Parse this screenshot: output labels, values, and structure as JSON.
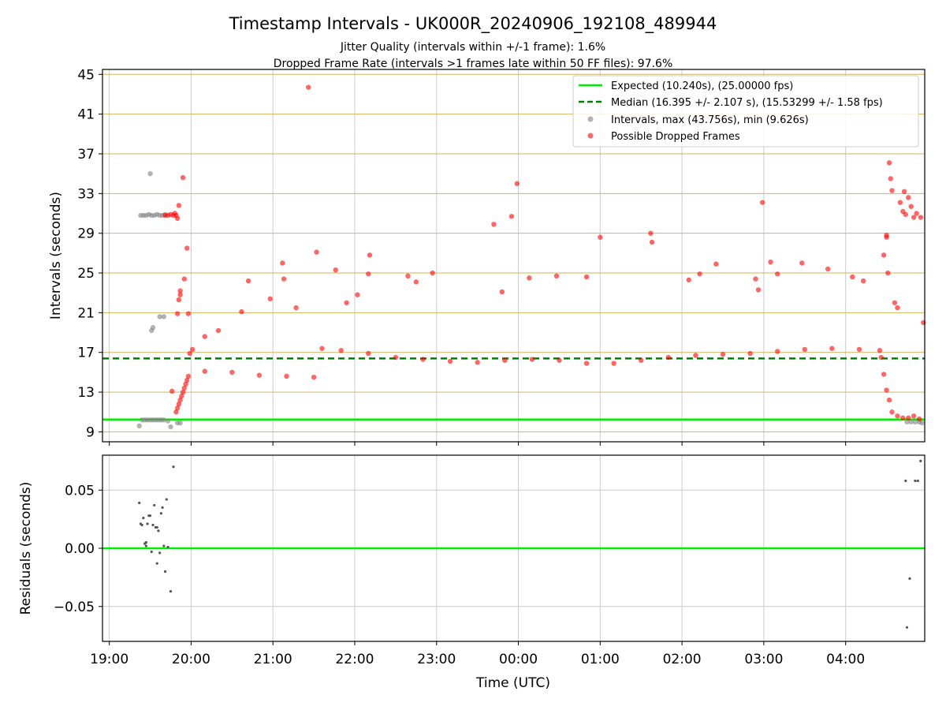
{
  "header": {
    "title": "Timestamp Intervals - UK000R_20240906_192108_489944",
    "subtitle_1": "Jitter Quality (intervals within +/-1 frame): 1.6%",
    "subtitle_2": "Dropped Frame Rate (intervals >1 frames late within 50 FF files): 97.6%"
  },
  "colors": {
    "expected": "#00ee00",
    "median": "#008000",
    "intervals": "#808080",
    "dropped": "#ff0000",
    "hgrid": "#d2b45a",
    "vgrid": "#cccccc"
  },
  "chart_data": [
    {
      "type": "scatter",
      "ylabel": "Intervals (seconds)",
      "xlim": [
        "18:55",
        "04:58"
      ],
      "ylim": [
        8,
        45.5
      ],
      "yticks": [
        9,
        13,
        17,
        21,
        25,
        29,
        33,
        37,
        41,
        45
      ],
      "ytick_labels": [
        "9",
        "13",
        "17",
        "21",
        "25",
        "29",
        "33",
        "37",
        "41",
        "45"
      ],
      "grid": "horizontal lines at y ticks, vertical lines at x ticks",
      "legend_position": "top-right",
      "legend": [
        "Expected (10.240s), (25.00000 fps)",
        "Median (16.395 +/- 2.107 s), (15.53299 +/- 1.58 fps)",
        "Intervals, max (43.756s), min (9.626s)",
        "Possible Dropped Frames"
      ],
      "reference_lines": {
        "expected": 10.24,
        "median": 16.395
      },
      "series": [
        {
          "name": "Intervals, max (43.756s), min (9.626s)",
          "points": [
            [
              "19:23",
              30.8
            ],
            [
              "19:25",
              30.8
            ],
            [
              "19:27",
              30.8
            ],
            [
              "19:29",
              30.9
            ],
            [
              "19:31",
              30.8
            ],
            [
              "19:33",
              30.8
            ],
            [
              "19:35",
              30.9
            ],
            [
              "19:37",
              30.8
            ],
            [
              "19:39",
              30.8
            ],
            [
              "19:41",
              30.9
            ],
            [
              "19:30",
              35.0
            ],
            [
              "19:31",
              19.2
            ],
            [
              "19:32",
              19.5
            ],
            [
              "19:37",
              20.6
            ],
            [
              "19:40",
              20.6
            ],
            [
              "19:22",
              9.6
            ],
            [
              "19:24",
              10.2
            ],
            [
              "19:26",
              10.2
            ],
            [
              "19:28",
              10.2
            ],
            [
              "19:30",
              10.2
            ],
            [
              "19:32",
              10.2
            ],
            [
              "19:34",
              10.2
            ],
            [
              "19:36",
              10.2
            ],
            [
              "19:38",
              10.2
            ],
            [
              "19:40",
              10.2
            ],
            [
              "19:43",
              10.1
            ],
            [
              "19:45",
              9.5
            ],
            [
              "19:50",
              9.9
            ],
            [
              "19:52",
              9.9
            ],
            [
              "04:45",
              10.0
            ],
            [
              "04:48",
              10.0
            ],
            [
              "04:51",
              10.0
            ],
            [
              "04:54",
              10.0
            ],
            [
              "04:56",
              9.9
            ]
          ]
        },
        {
          "name": "Possible Dropped Frames",
          "points": [
            [
              "19:41",
              30.8
            ],
            [
              "19:43",
              30.8
            ],
            [
              "19:45",
              30.9
            ],
            [
              "19:47",
              30.8
            ],
            [
              "19:48",
              31.0
            ],
            [
              "19:49",
              30.8
            ],
            [
              "19:50",
              30.5
            ],
            [
              "19:51",
              31.8
            ],
            [
              "19:54",
              34.6
            ],
            [
              "19:57",
              27.5
            ],
            [
              "19:52",
              23.2
            ],
            [
              "19:52",
              22.8
            ],
            [
              "19:51",
              22.3
            ],
            [
              "19:50",
              20.9
            ],
            [
              "19:55",
              24.4
            ],
            [
              "19:49",
              11.0
            ],
            [
              "19:50",
              11.4
            ],
            [
              "19:51",
              11.8
            ],
            [
              "19:52",
              12.2
            ],
            [
              "19:53",
              12.6
            ],
            [
              "19:54",
              13.0
            ],
            [
              "19:55",
              13.4
            ],
            [
              "19:56",
              13.8
            ],
            [
              "19:57",
              14.2
            ],
            [
              "19:58",
              14.6
            ],
            [
              "19:46",
              13.1
            ],
            [
              "19:58",
              20.9
            ],
            [
              "19:59",
              16.9
            ],
            [
              "20:01",
              17.3
            ],
            [
              "20:10",
              18.6
            ],
            [
              "20:20",
              19.2
            ],
            [
              "20:37",
              21.1
            ],
            [
              "20:42",
              24.2
            ],
            [
              "20:58",
              22.4
            ],
            [
              "21:07",
              26.0
            ],
            [
              "21:08",
              24.4
            ],
            [
              "21:17",
              21.5
            ],
            [
              "21:26",
              43.7
            ],
            [
              "21:32",
              27.1
            ],
            [
              "21:46",
              25.3
            ],
            [
              "21:54",
              22.0
            ],
            [
              "22:02",
              22.8
            ],
            [
              "22:10",
              24.9
            ],
            [
              "22:11",
              26.8
            ],
            [
              "22:39",
              24.7
            ],
            [
              "22:45",
              24.1
            ],
            [
              "22:57",
              25.0
            ],
            [
              "23:42",
              29.9
            ],
            [
              "23:48",
              23.1
            ],
            [
              "23:55",
              30.7
            ],
            [
              "23:59",
              34.0
            ],
            [
              "00:08",
              24.5
            ],
            [
              "00:28",
              24.7
            ],
            [
              "00:50",
              24.6
            ],
            [
              "01:00",
              28.6
            ],
            [
              "01:37",
              29.0
            ],
            [
              "01:38",
              28.1
            ],
            [
              "02:05",
              24.3
            ],
            [
              "02:13",
              24.9
            ],
            [
              "02:25",
              25.9
            ],
            [
              "02:54",
              24.4
            ],
            [
              "02:56",
              23.3
            ],
            [
              "02:59",
              32.1
            ],
            [
              "03:05",
              26.1
            ],
            [
              "03:10",
              24.9
            ],
            [
              "03:28",
              26.0
            ],
            [
              "03:47",
              25.4
            ],
            [
              "04:05",
              24.6
            ],
            [
              "04:13",
              24.2
            ],
            [
              "20:10",
              15.1
            ],
            [
              "20:30",
              15.0
            ],
            [
              "20:50",
              14.7
            ],
            [
              "21:10",
              14.6
            ],
            [
              "21:30",
              14.5
            ],
            [
              "21:36",
              17.4
            ],
            [
              "21:50",
              17.2
            ],
            [
              "22:10",
              16.9
            ],
            [
              "22:30",
              16.5
            ],
            [
              "22:50",
              16.3
            ],
            [
              "23:10",
              16.1
            ],
            [
              "23:30",
              16.0
            ],
            [
              "23:50",
              16.2
            ],
            [
              "00:10",
              16.3
            ],
            [
              "00:30",
              16.2
            ],
            [
              "00:50",
              15.9
            ],
            [
              "01:10",
              15.9
            ],
            [
              "01:30",
              16.2
            ],
            [
              "01:50",
              16.5
            ],
            [
              "02:10",
              16.7
            ],
            [
              "02:30",
              16.8
            ],
            [
              "02:50",
              16.9
            ],
            [
              "03:10",
              17.1
            ],
            [
              "03:30",
              17.3
            ],
            [
              "03:50",
              17.4
            ],
            [
              "04:10",
              17.3
            ],
            [
              "04:25",
              17.2
            ],
            [
              "04:26",
              16.5
            ],
            [
              "04:28",
              14.8
            ],
            [
              "04:30",
              13.2
            ],
            [
              "04:32",
              12.2
            ],
            [
              "04:34",
              11.0
            ],
            [
              "04:38",
              10.6
            ],
            [
              "04:42",
              10.4
            ],
            [
              "04:46",
              10.4
            ],
            [
              "04:50",
              10.6
            ],
            [
              "04:54",
              10.3
            ],
            [
              "04:28",
              26.8
            ],
            [
              "04:30",
              28.6
            ],
            [
              "04:30",
              28.8
            ],
            [
              "04:31",
              25.0
            ],
            [
              "04:32",
              36.1
            ],
            [
              "04:33",
              34.5
            ],
            [
              "04:34",
              33.3
            ],
            [
              "04:36",
              22.0
            ],
            [
              "04:38",
              21.5
            ],
            [
              "04:40",
              32.1
            ],
            [
              "04:42",
              31.2
            ],
            [
              "04:43",
              33.2
            ],
            [
              "04:44",
              30.9
            ],
            [
              "04:46",
              32.6
            ],
            [
              "04:48",
              31.7
            ],
            [
              "04:50",
              30.6
            ],
            [
              "04:52",
              31.0
            ],
            [
              "04:55",
              30.6
            ],
            [
              "04:57",
              20.0
            ]
          ]
        }
      ]
    },
    {
      "type": "scatter",
      "xlabel": "Time (UTC)",
      "ylabel": "Residuals (seconds)",
      "xlim": [
        "18:55",
        "04:58"
      ],
      "ylim": [
        -0.08,
        0.08
      ],
      "xticks": [
        "19:00",
        "20:00",
        "21:00",
        "22:00",
        "23:00",
        "00:00",
        "01:00",
        "02:00",
        "03:00",
        "04:00"
      ],
      "yticks": [
        0.05,
        0.0,
        -0.05
      ],
      "ytick_labels": [
        "0.05",
        "0.00",
        "−0.05"
      ],
      "grid": "horizontal and vertical lines at ticks",
      "zero_line": 0,
      "series": [
        {
          "points": [
            [
              "19:22",
              0.039
            ],
            [
              "19:23",
              0.021
            ],
            [
              "19:24",
              0.02
            ],
            [
              "19:25",
              0.026
            ],
            [
              "19:26",
              0.004
            ],
            [
              "19:27",
              0.005
            ],
            [
              "19:27",
              0.002
            ],
            [
              "19:28",
              0.021
            ],
            [
              "19:29",
              0.028
            ],
            [
              "19:30",
              0.028
            ],
            [
              "19:31",
              -0.003
            ],
            [
              "19:32",
              0.02
            ],
            [
              "19:33",
              0.037
            ],
            [
              "19:34",
              0.018
            ],
            [
              "19:35",
              0.018
            ],
            [
              "19:35",
              -0.013
            ],
            [
              "19:36",
              0.015
            ],
            [
              "19:37",
              -0.004
            ],
            [
              "19:38",
              0.03
            ],
            [
              "19:39",
              0.035
            ],
            [
              "19:40",
              0.002
            ],
            [
              "19:41",
              -0.02
            ],
            [
              "19:42",
              0.042
            ],
            [
              "19:43",
              0.001
            ],
            [
              "19:45",
              -0.037
            ],
            [
              "19:47",
              0.07
            ],
            [
              "04:44",
              0.058
            ],
            [
              "04:45",
              -0.068
            ],
            [
              "04:47",
              -0.026
            ],
            [
              "04:51",
              0.058
            ],
            [
              "04:53",
              0.058
            ],
            [
              "04:55",
              0.075
            ]
          ]
        }
      ]
    }
  ]
}
